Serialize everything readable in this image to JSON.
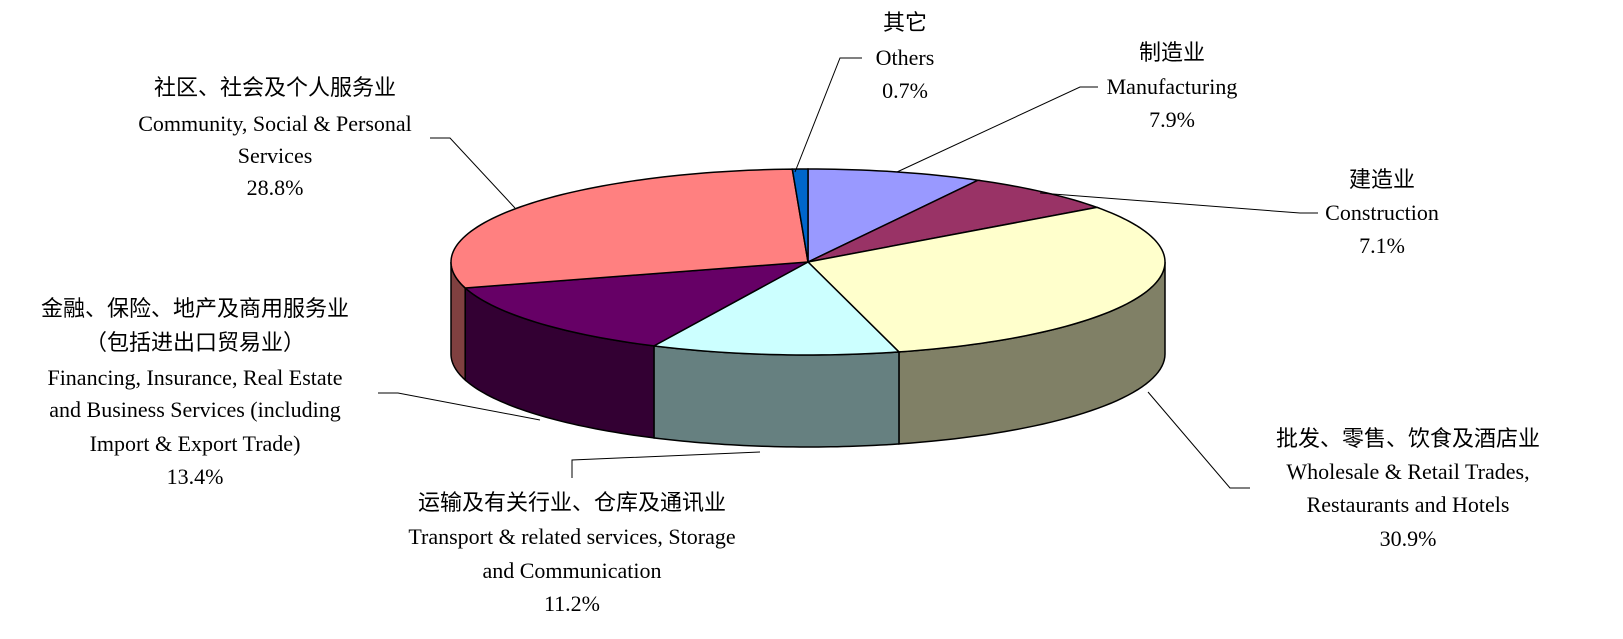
{
  "chart_data": {
    "type": "pie3d",
    "categories": [
      [
        "制造业",
        "Manufacturing"
      ],
      [
        "建造业",
        "Construction"
      ],
      [
        "批发、零售、饮食及酒店业",
        "Wholesale & Retail Trades,",
        "Restaurants and Hotels"
      ],
      [
        "运输及有关行业、仓库及通讯业",
        "Transport & related services, Storage",
        "and Communication"
      ],
      [
        "金融、保险、地产及商用服务业",
        "（包括进出口贸易业）",
        "Financing, Insurance, Real Estate",
        "and Business Services (including",
        "Import & Export Trade)"
      ],
      [
        "社区、社会及个人服务业",
        "Community, Social & Personal",
        "Services"
      ],
      [
        "其它",
        "Others"
      ]
    ],
    "values": [
      7.9,
      7.1,
      30.9,
      11.2,
      13.4,
      28.8,
      0.7
    ],
    "value_labels": [
      "7.9%",
      "7.1%",
      "30.9%",
      "11.2%",
      "13.4%",
      "28.8%",
      "0.7%"
    ],
    "colors": [
      "#9999ff",
      "#993366",
      "#ffffcc",
      "#ccffff",
      "#660066",
      "#ff8080",
      "#0066cc"
    ]
  }
}
